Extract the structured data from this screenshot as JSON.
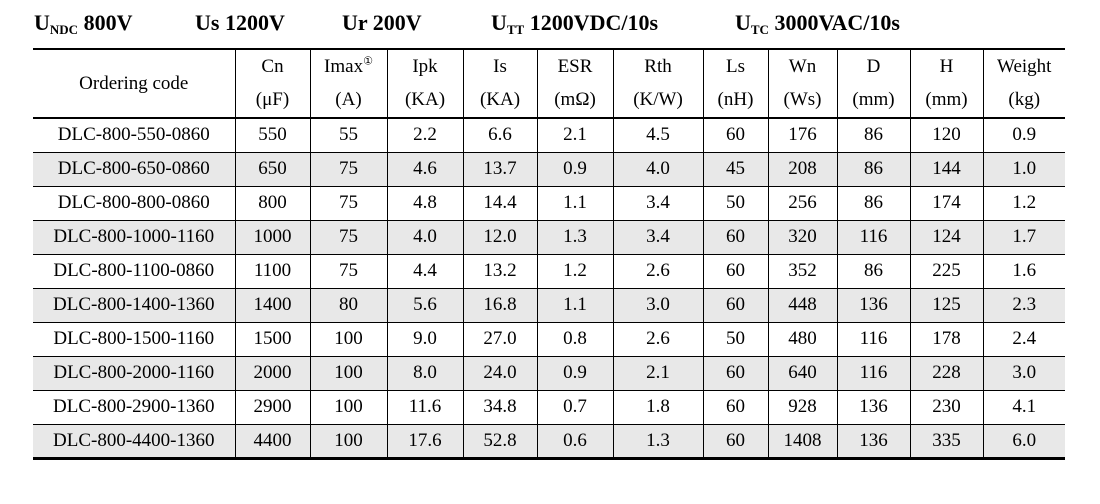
{
  "title": {
    "items": [
      {
        "base": "U",
        "sub": "NDC",
        "rest": " 800V"
      },
      {
        "base": "Us",
        "sub": "",
        "rest": " 1200V"
      },
      {
        "base": "Ur",
        "sub": "",
        "rest": " 200V"
      },
      {
        "base": "U",
        "sub": "TT",
        "rest": " 1200VDC/10s"
      },
      {
        "base": "U",
        "sub": "TC",
        "rest": " 3000VAC/10s"
      }
    ]
  },
  "table": {
    "columns": [
      {
        "name": "Ordering code",
        "sup": "",
        "unit": ""
      },
      {
        "name": "Cn",
        "sup": "",
        "unit": "(μF)"
      },
      {
        "name": "Imax",
        "sup": "①",
        "unit": "(A)"
      },
      {
        "name": "Ipk",
        "sup": "",
        "unit": "(KA)"
      },
      {
        "name": "Is",
        "sup": "",
        "unit": "(KA)"
      },
      {
        "name": "ESR",
        "sup": "",
        "unit": "(mΩ)"
      },
      {
        "name": "Rth",
        "sup": "",
        "unit": "(K/W)"
      },
      {
        "name": "Ls",
        "sup": "",
        "unit": "(nH)"
      },
      {
        "name": "Wn",
        "sup": "",
        "unit": "(Ws)"
      },
      {
        "name": "D",
        "sup": "",
        "unit": "(mm)"
      },
      {
        "name": "H",
        "sup": "",
        "unit": "(mm)"
      },
      {
        "name": "Weight",
        "sup": "",
        "unit": "(kg)"
      }
    ],
    "rows": [
      [
        "DLC-800-550-0860",
        "550",
        "55",
        "2.2",
        "6.6",
        "2.1",
        "4.5",
        "60",
        "176",
        "86",
        "120",
        "0.9"
      ],
      [
        "DLC-800-650-0860",
        "650",
        "75",
        "4.6",
        "13.7",
        "0.9",
        "4.0",
        "45",
        "208",
        "86",
        "144",
        "1.0"
      ],
      [
        "DLC-800-800-0860",
        "800",
        "75",
        "4.8",
        "14.4",
        "1.1",
        "3.4",
        "50",
        "256",
        "86",
        "174",
        "1.2"
      ],
      [
        "DLC-800-1000-1160",
        "1000",
        "75",
        "4.0",
        "12.0",
        "1.3",
        "3.4",
        "60",
        "320",
        "116",
        "124",
        "1.7"
      ],
      [
        "DLC-800-1100-0860",
        "1100",
        "75",
        "4.4",
        "13.2",
        "1.2",
        "2.6",
        "60",
        "352",
        "86",
        "225",
        "1.6"
      ],
      [
        "DLC-800-1400-1360",
        "1400",
        "80",
        "5.6",
        "16.8",
        "1.1",
        "3.0",
        "60",
        "448",
        "136",
        "125",
        "2.3"
      ],
      [
        "DLC-800-1500-1160",
        "1500",
        "100",
        "9.0",
        "27.0",
        "0.8",
        "2.6",
        "50",
        "480",
        "116",
        "178",
        "2.4"
      ],
      [
        "DLC-800-2000-1160",
        "2000",
        "100",
        "8.0",
        "24.0",
        "0.9",
        "2.1",
        "60",
        "640",
        "116",
        "228",
        "3.0"
      ],
      [
        "DLC-800-2900-1360",
        "2900",
        "100",
        "11.6",
        "34.8",
        "0.7",
        "1.8",
        "60",
        "928",
        "136",
        "230",
        "4.1"
      ],
      [
        "DLC-800-4400-1360",
        "4400",
        "100",
        "17.6",
        "52.8",
        "0.6",
        "1.3",
        "60",
        "1408",
        "136",
        "335",
        "6.0"
      ]
    ]
  },
  "colors": {
    "row_alt": "#e8e8e8",
    "border": "#000000",
    "text": "#000000"
  }
}
